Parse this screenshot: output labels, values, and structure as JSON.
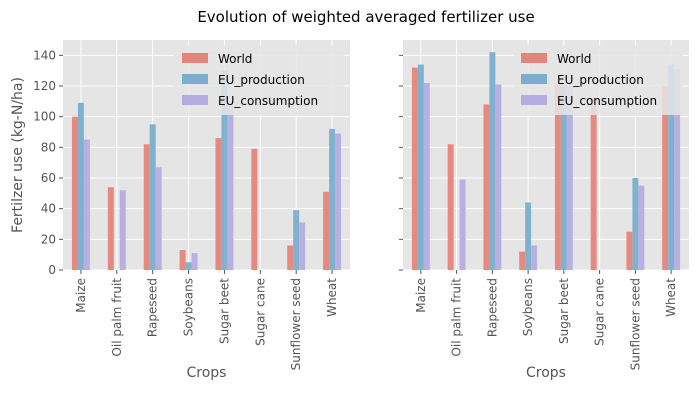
{
  "figure": {
    "suptitle": "Evolution of weighted averaged fertilizer use"
  },
  "colors": {
    "panel_background": "#e5e5e5",
    "grid": "#ffffff",
    "World": "#e5857a",
    "EU_production": "#7aafcf",
    "EU_consumption": "#b5ade0"
  },
  "chart_data": [
    {
      "type": "bar",
      "title": "",
      "xlabel": "Crops",
      "ylabel": "Fertilzer use (kg-N/ha)",
      "ylim": [
        0,
        150
      ],
      "yticks": [
        0,
        20,
        40,
        60,
        80,
        100,
        120,
        140
      ],
      "grid": true,
      "legend_position": "top-right",
      "categories": [
        "Maize",
        "Oil palm fruit",
        "Rapeseed",
        "Soybeans",
        "Sugar beet",
        "Sugar cane",
        "Sunflower seed",
        "Wheat"
      ],
      "series": [
        {
          "name": "World",
          "values": [
            100,
            54,
            82,
            13,
            86,
            79,
            16,
            51
          ]
        },
        {
          "name": "EU_production",
          "values": [
            109,
            null,
            95,
            5,
            130,
            null,
            39,
            92
          ]
        },
        {
          "name": "EU_consumption",
          "values": [
            85,
            52,
            67,
            11,
            110,
            null,
            31,
            89
          ]
        }
      ]
    },
    {
      "type": "bar",
      "title": "",
      "xlabel": "Crops",
      "ylabel": "",
      "ylim": [
        0,
        150
      ],
      "yticks": [
        0,
        20,
        40,
        60,
        80,
        100,
        120,
        140
      ],
      "grid": true,
      "legend_position": "top-right",
      "categories": [
        "Maize",
        "Oil palm fruit",
        "Rapeseed",
        "Soybeans",
        "Sugar beet",
        "Sugar cane",
        "Sunflower seed",
        "Wheat"
      ],
      "series": [
        {
          "name": "World",
          "values": [
            132,
            82,
            108,
            12,
            121,
            112,
            25,
            120
          ]
        },
        {
          "name": "EU_production",
          "values": [
            134,
            null,
            142,
            44,
            121,
            null,
            60,
            134
          ]
        },
        {
          "name": "EU_consumption",
          "values": [
            122,
            59,
            121,
            16,
            120,
            null,
            55,
            131
          ]
        }
      ]
    }
  ]
}
